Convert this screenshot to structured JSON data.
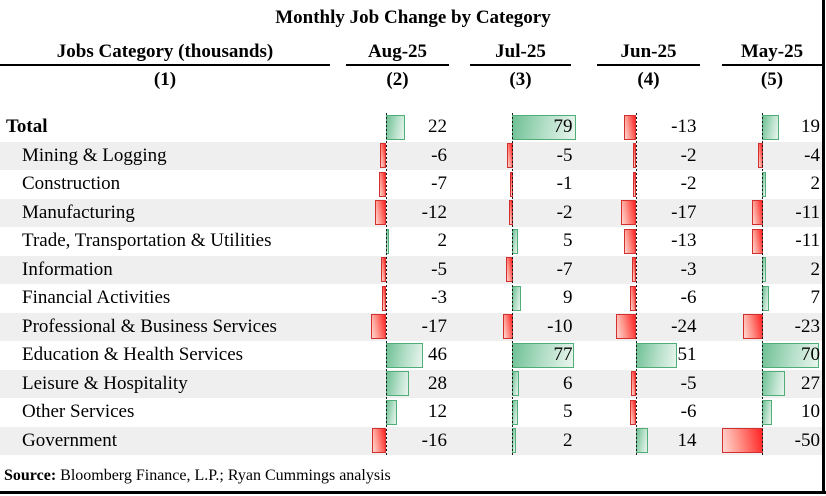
{
  "title": "Monthly Job Change by Category",
  "header": {
    "category_column": {
      "label": "Jobs Category (thousands)",
      "number": "(1)"
    },
    "month_columns": [
      {
        "label": "Aug-25",
        "number": "(2)"
      },
      {
        "label": "Jul-25",
        "number": "(3)"
      },
      {
        "label": "Jun-25",
        "number": "(4)"
      },
      {
        "label": "May-25",
        "number": "(5)"
      }
    ]
  },
  "source": {
    "label": "Source:",
    "text": "Bloomberg Finance, L.P.; Ryan Cummings analysis"
  },
  "colors": {
    "positive_bar": "#6fc195",
    "positive_bar_border": "#4fae78",
    "negative_bar": "#ff2222",
    "negative_bar_border": "#d32f2f",
    "row_stripe": "#efefef",
    "text": "#000000"
  },
  "chart_data": {
    "type": "table",
    "title": "Monthly Job Change by Category",
    "unit": "thousands",
    "description": "Table with in-cell diverging horizontal data bars; green = positive job change, red = negative; dashed vertical line marks zero in each month column",
    "emphasis_row": "Total",
    "categories": [
      "Total",
      "Mining & Logging",
      "Construction",
      "Manufacturing",
      "Trade, Transportation & Utilities",
      "Information",
      "Financial Activities",
      "Professional & Business Services",
      "Education & Health Services",
      "Leisure & Hospitality",
      "Other Services",
      "Government"
    ],
    "series": [
      {
        "name": "Aug-25",
        "values": [
          22,
          -6,
          -7,
          -12,
          2,
          -5,
          -3,
          -17,
          46,
          28,
          12,
          -16
        ]
      },
      {
        "name": "Jul-25",
        "values": [
          79,
          -5,
          -1,
          -2,
          5,
          -7,
          9,
          -10,
          77,
          6,
          5,
          2
        ]
      },
      {
        "name": "Jun-25",
        "values": [
          -13,
          -2,
          -2,
          -17,
          -13,
          -3,
          -6,
          -24,
          51,
          -5,
          -6,
          14
        ]
      },
      {
        "name": "May-25",
        "values": [
          19,
          -4,
          2,
          -11,
          -11,
          2,
          7,
          -23,
          70,
          27,
          10,
          -50
        ]
      }
    ],
    "source": "Source: Bloomberg Finance, L.P.; Ryan Cummings analysis"
  }
}
